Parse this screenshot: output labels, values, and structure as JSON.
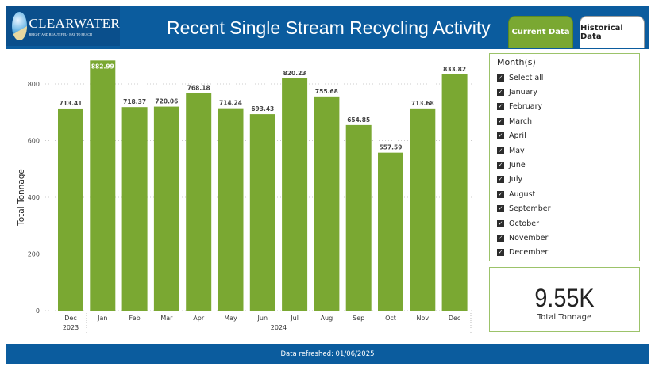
{
  "header": {
    "logo_text": "CLEARWATER",
    "logo_tagline": "BRIGHT AND BEAUTIFUL · BAY TO BEACH",
    "title": "Recent Single Stream Recycling Activity",
    "tabs": [
      {
        "label": "Current Data",
        "active": true
      },
      {
        "label": "Historical Data",
        "active": false
      }
    ]
  },
  "colors": {
    "header": "#0b5c9e",
    "bar": "#7aa832",
    "accent": "#9cc36a"
  },
  "slicer": {
    "title": "Month(s)",
    "items": [
      "Select all",
      "January",
      "February",
      "March",
      "April",
      "May",
      "June",
      "July",
      "August",
      "September",
      "October",
      "November",
      "December"
    ]
  },
  "card": {
    "value": "9.55K",
    "label": "Total Tonnage"
  },
  "footer": {
    "text": "Data refreshed: 01/06/2025"
  },
  "chart_data": {
    "type": "bar",
    "ylabel": "Total Tonnage",
    "ylim": [
      0,
      800
    ],
    "yticks": [
      "0",
      "200",
      "400",
      "600",
      "800"
    ],
    "categories": [
      "Dec",
      "Jan",
      "Feb",
      "Mar",
      "Apr",
      "May",
      "Jun",
      "Jul",
      "Aug",
      "Sep",
      "Oct",
      "Nov",
      "Dec"
    ],
    "year_labels": [
      {
        "label": "2023",
        "span": [
          0,
          0
        ]
      },
      {
        "label": "2024",
        "span": [
          1,
          12
        ]
      }
    ],
    "values": [
      713.41,
      882.99,
      718.37,
      720.06,
      768.18,
      714.24,
      693.43,
      820.23,
      755.68,
      654.85,
      557.59,
      713.68,
      833.82
    ],
    "data_labels": [
      "713.41",
      "882.99",
      "718.37",
      "720.06",
      "768.18",
      "714.24",
      "693.43",
      "820.23",
      "755.68",
      "654.85",
      "557.59",
      "713.68",
      "833.82"
    ],
    "grid": true
  }
}
